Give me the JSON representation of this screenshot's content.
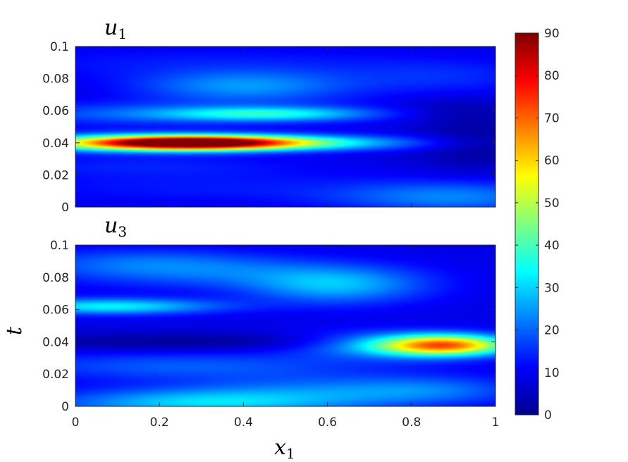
{
  "chart_data": {
    "type": "heatmap",
    "shared": {
      "xlabel": "x",
      "xlabel_sub": "1",
      "ylabel": "t",
      "xlim": [
        0,
        1
      ],
      "ylim": [
        0,
        0.1
      ],
      "xticks": [
        "0",
        "0.2",
        "0.4",
        "0.6",
        "0.8",
        "1"
      ],
      "yticks": [
        "0",
        "0.02",
        "0.04",
        "0.06",
        "0.08",
        "0.1"
      ],
      "colormap": "jet",
      "colorbar": {
        "min": 0,
        "max": 90,
        "ticks": [
          "0",
          "10",
          "20",
          "30",
          "40",
          "50",
          "60",
          "70",
          "80",
          "90"
        ]
      }
    },
    "panels": [
      {
        "title": "u",
        "title_sub": "1",
        "background": 8,
        "features": [
          {
            "x": 0.28,
            "t": 0.04,
            "sx": 0.18,
            "st": 0.003,
            "amp": 82
          },
          {
            "x": 0.15,
            "t": 0.04,
            "sx": 0.25,
            "st": 0.004,
            "amp": 25
          },
          {
            "x": 0.62,
            "t": 0.04,
            "sx": 0.2,
            "st": 0.0035,
            "amp": 14
          },
          {
            "x": 0.45,
            "t": 0.058,
            "sx": 0.17,
            "st": 0.003,
            "amp": 22
          },
          {
            "x": 0.4,
            "t": 0.075,
            "sx": 0.18,
            "st": 0.007,
            "amp": 16
          },
          {
            "x": 0.4,
            "t": 0.058,
            "sx": 0.4,
            "st": 0.006,
            "amp": 6
          },
          {
            "x": 0.1,
            "t": 0.058,
            "sx": 0.22,
            "st": 0.005,
            "amp": 6
          },
          {
            "x": 0.88,
            "t": 0.08,
            "sx": 0.18,
            "st": 0.008,
            "amp": 6
          },
          {
            "x": 0.3,
            "t": 0.09,
            "sx": 0.45,
            "st": 0.008,
            "amp": 5
          },
          {
            "x": 0.9,
            "t": 0.006,
            "sx": 0.2,
            "st": 0.007,
            "amp": 14
          },
          {
            "x": 0.3,
            "t": 0.012,
            "sx": 0.4,
            "st": 0.008,
            "amp": 5
          },
          {
            "x": 0.15,
            "t": 0.026,
            "sx": 0.3,
            "st": 0.005,
            "amp": 5
          },
          {
            "x": 0.95,
            "t": 0.04,
            "sx": 0.1,
            "st": 0.012,
            "amp": -6
          },
          {
            "x": 0.9,
            "t": 0.06,
            "sx": 0.12,
            "st": 0.006,
            "amp": -5
          }
        ]
      },
      {
        "title": "u",
        "title_sub": "3",
        "background": 9,
        "features": [
          {
            "x": 0.88,
            "t": 0.038,
            "sx": 0.11,
            "st": 0.0045,
            "amp": 58
          },
          {
            "x": 0.72,
            "t": 0.038,
            "sx": 0.15,
            "st": 0.006,
            "amp": 15
          },
          {
            "x": 0.08,
            "t": 0.062,
            "sx": 0.18,
            "st": 0.0035,
            "amp": 24
          },
          {
            "x": 0.62,
            "t": 0.075,
            "sx": 0.15,
            "st": 0.008,
            "amp": 18
          },
          {
            "x": 0.3,
            "t": 0.083,
            "sx": 0.25,
            "st": 0.007,
            "amp": 10
          },
          {
            "x": 0.15,
            "t": 0.09,
            "sx": 0.2,
            "st": 0.006,
            "amp": 8
          },
          {
            "x": 0.3,
            "t": 0.002,
            "sx": 0.25,
            "st": 0.006,
            "amp": 20
          },
          {
            "x": 0.25,
            "t": 0.025,
            "sx": 0.3,
            "st": 0.006,
            "amp": 10
          },
          {
            "x": 0.6,
            "t": 0.01,
            "sx": 0.25,
            "st": 0.007,
            "amp": 10
          },
          {
            "x": 0.85,
            "t": 0.01,
            "sx": 0.15,
            "st": 0.006,
            "amp": 8
          },
          {
            "x": 0.3,
            "t": 0.04,
            "sx": 0.4,
            "st": 0.004,
            "amp": -7
          }
        ]
      }
    ]
  }
}
